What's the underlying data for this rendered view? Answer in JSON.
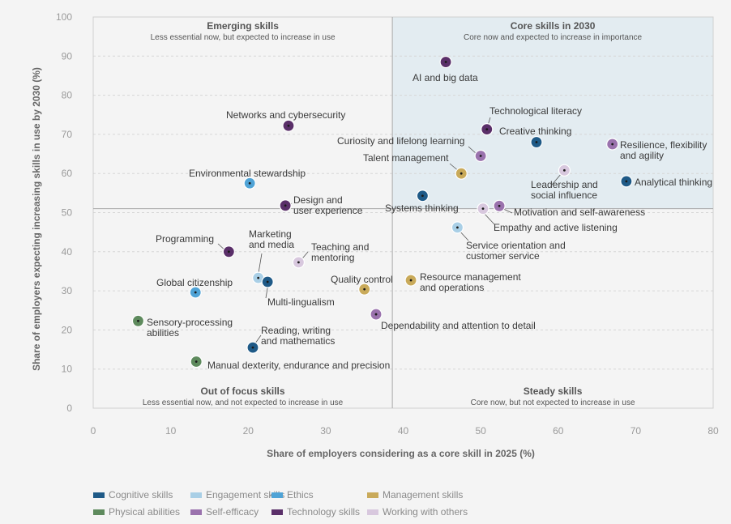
{
  "chart_data": {
    "type": "scatter",
    "xlabel": "Share of employers considering as a core skill in 2025 (%)",
    "ylabel": "Share of employers expecting increasing skills in use by 2030 (%)",
    "xlim": [
      0,
      80
    ],
    "ylim": [
      0,
      100
    ],
    "xticks": [
      0,
      10,
      20,
      30,
      40,
      50,
      60,
      70,
      80
    ],
    "yticks": [
      0,
      10,
      20,
      30,
      40,
      50,
      60,
      70,
      80,
      90,
      100
    ],
    "grid": "horizontal",
    "divider": {
      "x": 38.6,
      "y": 51
    },
    "legend_position": "bottom",
    "quadrants": [
      {
        "title": "Emerging skills",
        "subtitle": "Less essential now, but expected to increase in use",
        "position": "top-left"
      },
      {
        "title": "Core skills in 2030",
        "subtitle": "Core now and expected to increase in importance",
        "position": "top-right"
      },
      {
        "title": "Out of focus skills",
        "subtitle": "Less essential now, and not expected to increase in use",
        "position": "bottom-left"
      },
      {
        "title": "Steady skills",
        "subtitle": "Core now, but not expected to increase in use",
        "position": "bottom-right"
      }
    ],
    "categories": [
      {
        "name": "Cognitive skills",
        "color": "#1f5a87"
      },
      {
        "name": "Engagement skills",
        "color": "#a9cfe6"
      },
      {
        "name": "Ethics",
        "color": "#4fa3d6"
      },
      {
        "name": "Management skills",
        "color": "#c9aa5a"
      },
      {
        "name": "Physical abilities",
        "color": "#5e8a5d"
      },
      {
        "name": "Self-efficacy",
        "color": "#9a72ad"
      },
      {
        "name": "Technology skills",
        "color": "#5a2f69"
      },
      {
        "name": "Working with others",
        "color": "#d8c8de"
      }
    ],
    "points": [
      {
        "label": [
          "AI and big data"
        ],
        "x": 45.5,
        "y": 88.5,
        "category": "Technology skills"
      },
      {
        "label": [
          "Technological literacy"
        ],
        "x": 50.8,
        "y": 71.3,
        "category": "Technology skills"
      },
      {
        "label": [
          "Creative thinking"
        ],
        "x": 57.2,
        "y": 68,
        "category": "Cognitive skills"
      },
      {
        "label": [
          "Resilience, flexibility",
          "and agility"
        ],
        "x": 67,
        "y": 67.5,
        "category": "Self-efficacy"
      },
      {
        "label": [
          "Curiosity and lifelong learning"
        ],
        "x": 50,
        "y": 64.5,
        "category": "Self-efficacy"
      },
      {
        "label": [
          "Talent management"
        ],
        "x": 47.5,
        "y": 60,
        "category": "Management skills"
      },
      {
        "label": [
          "Leadership and",
          "social influence"
        ],
        "x": 60.8,
        "y": 60.8,
        "category": "Working with others"
      },
      {
        "label": [
          "Analytical thinking"
        ],
        "x": 68.8,
        "y": 58,
        "category": "Cognitive skills"
      },
      {
        "label": [
          "Systems thinking"
        ],
        "x": 42.5,
        "y": 54.3,
        "category": "Cognitive skills"
      },
      {
        "label": [
          "Motivation and self-awareness"
        ],
        "x": 52.4,
        "y": 51.7,
        "category": "Self-efficacy"
      },
      {
        "label": [
          "Empathy and active listening"
        ],
        "x": 50.3,
        "y": 51,
        "category": "Working with others"
      },
      {
        "label": [
          "Service orientation and",
          "customer service"
        ],
        "x": 47,
        "y": 46.2,
        "category": "Engagement skills"
      },
      {
        "label": [
          "Networks and cybersecurity"
        ],
        "x": 25.2,
        "y": 72.2,
        "category": "Technology skills"
      },
      {
        "label": [
          "Environmental stewardship"
        ],
        "x": 20.2,
        "y": 57.5,
        "category": "Ethics"
      },
      {
        "label": [
          "Design and",
          "user experience"
        ],
        "x": 24.8,
        "y": 51.8,
        "category": "Technology skills"
      },
      {
        "label": [
          "Programming"
        ],
        "x": 17.5,
        "y": 40,
        "category": "Technology skills"
      },
      {
        "label": [
          "Teaching and",
          "mentoring"
        ],
        "x": 26.5,
        "y": 37.3,
        "category": "Working with others"
      },
      {
        "label": [
          "Marketing",
          "and media"
        ],
        "x": 21.3,
        "y": 33.3,
        "category": "Engagement skills"
      },
      {
        "label": [
          "Multi-lingualism"
        ],
        "x": 22.5,
        "y": 32.3,
        "category": "Cognitive skills"
      },
      {
        "label": [
          "Global citizenship"
        ],
        "x": 13.2,
        "y": 29.6,
        "category": "Ethics"
      },
      {
        "label": [
          "Quality control"
        ],
        "x": 35,
        "y": 30.4,
        "category": "Management skills"
      },
      {
        "label": [
          "Resource management",
          "and operations"
        ],
        "x": 41,
        "y": 32.7,
        "category": "Management skills"
      },
      {
        "label": [
          "Dependability and attention to detail"
        ],
        "x": 36.5,
        "y": 24,
        "category": "Self-efficacy"
      },
      {
        "label": [
          "Sensory-processing",
          "abilities"
        ],
        "x": 5.8,
        "y": 22.3,
        "category": "Physical abilities"
      },
      {
        "label": [
          "Reading, writing",
          "and mathematics"
        ],
        "x": 20.6,
        "y": 15.5,
        "category": "Cognitive skills"
      },
      {
        "label": [
          "Manual dexterity, endurance and precision"
        ],
        "x": 13.3,
        "y": 11.9,
        "category": "Physical abilities"
      }
    ]
  }
}
